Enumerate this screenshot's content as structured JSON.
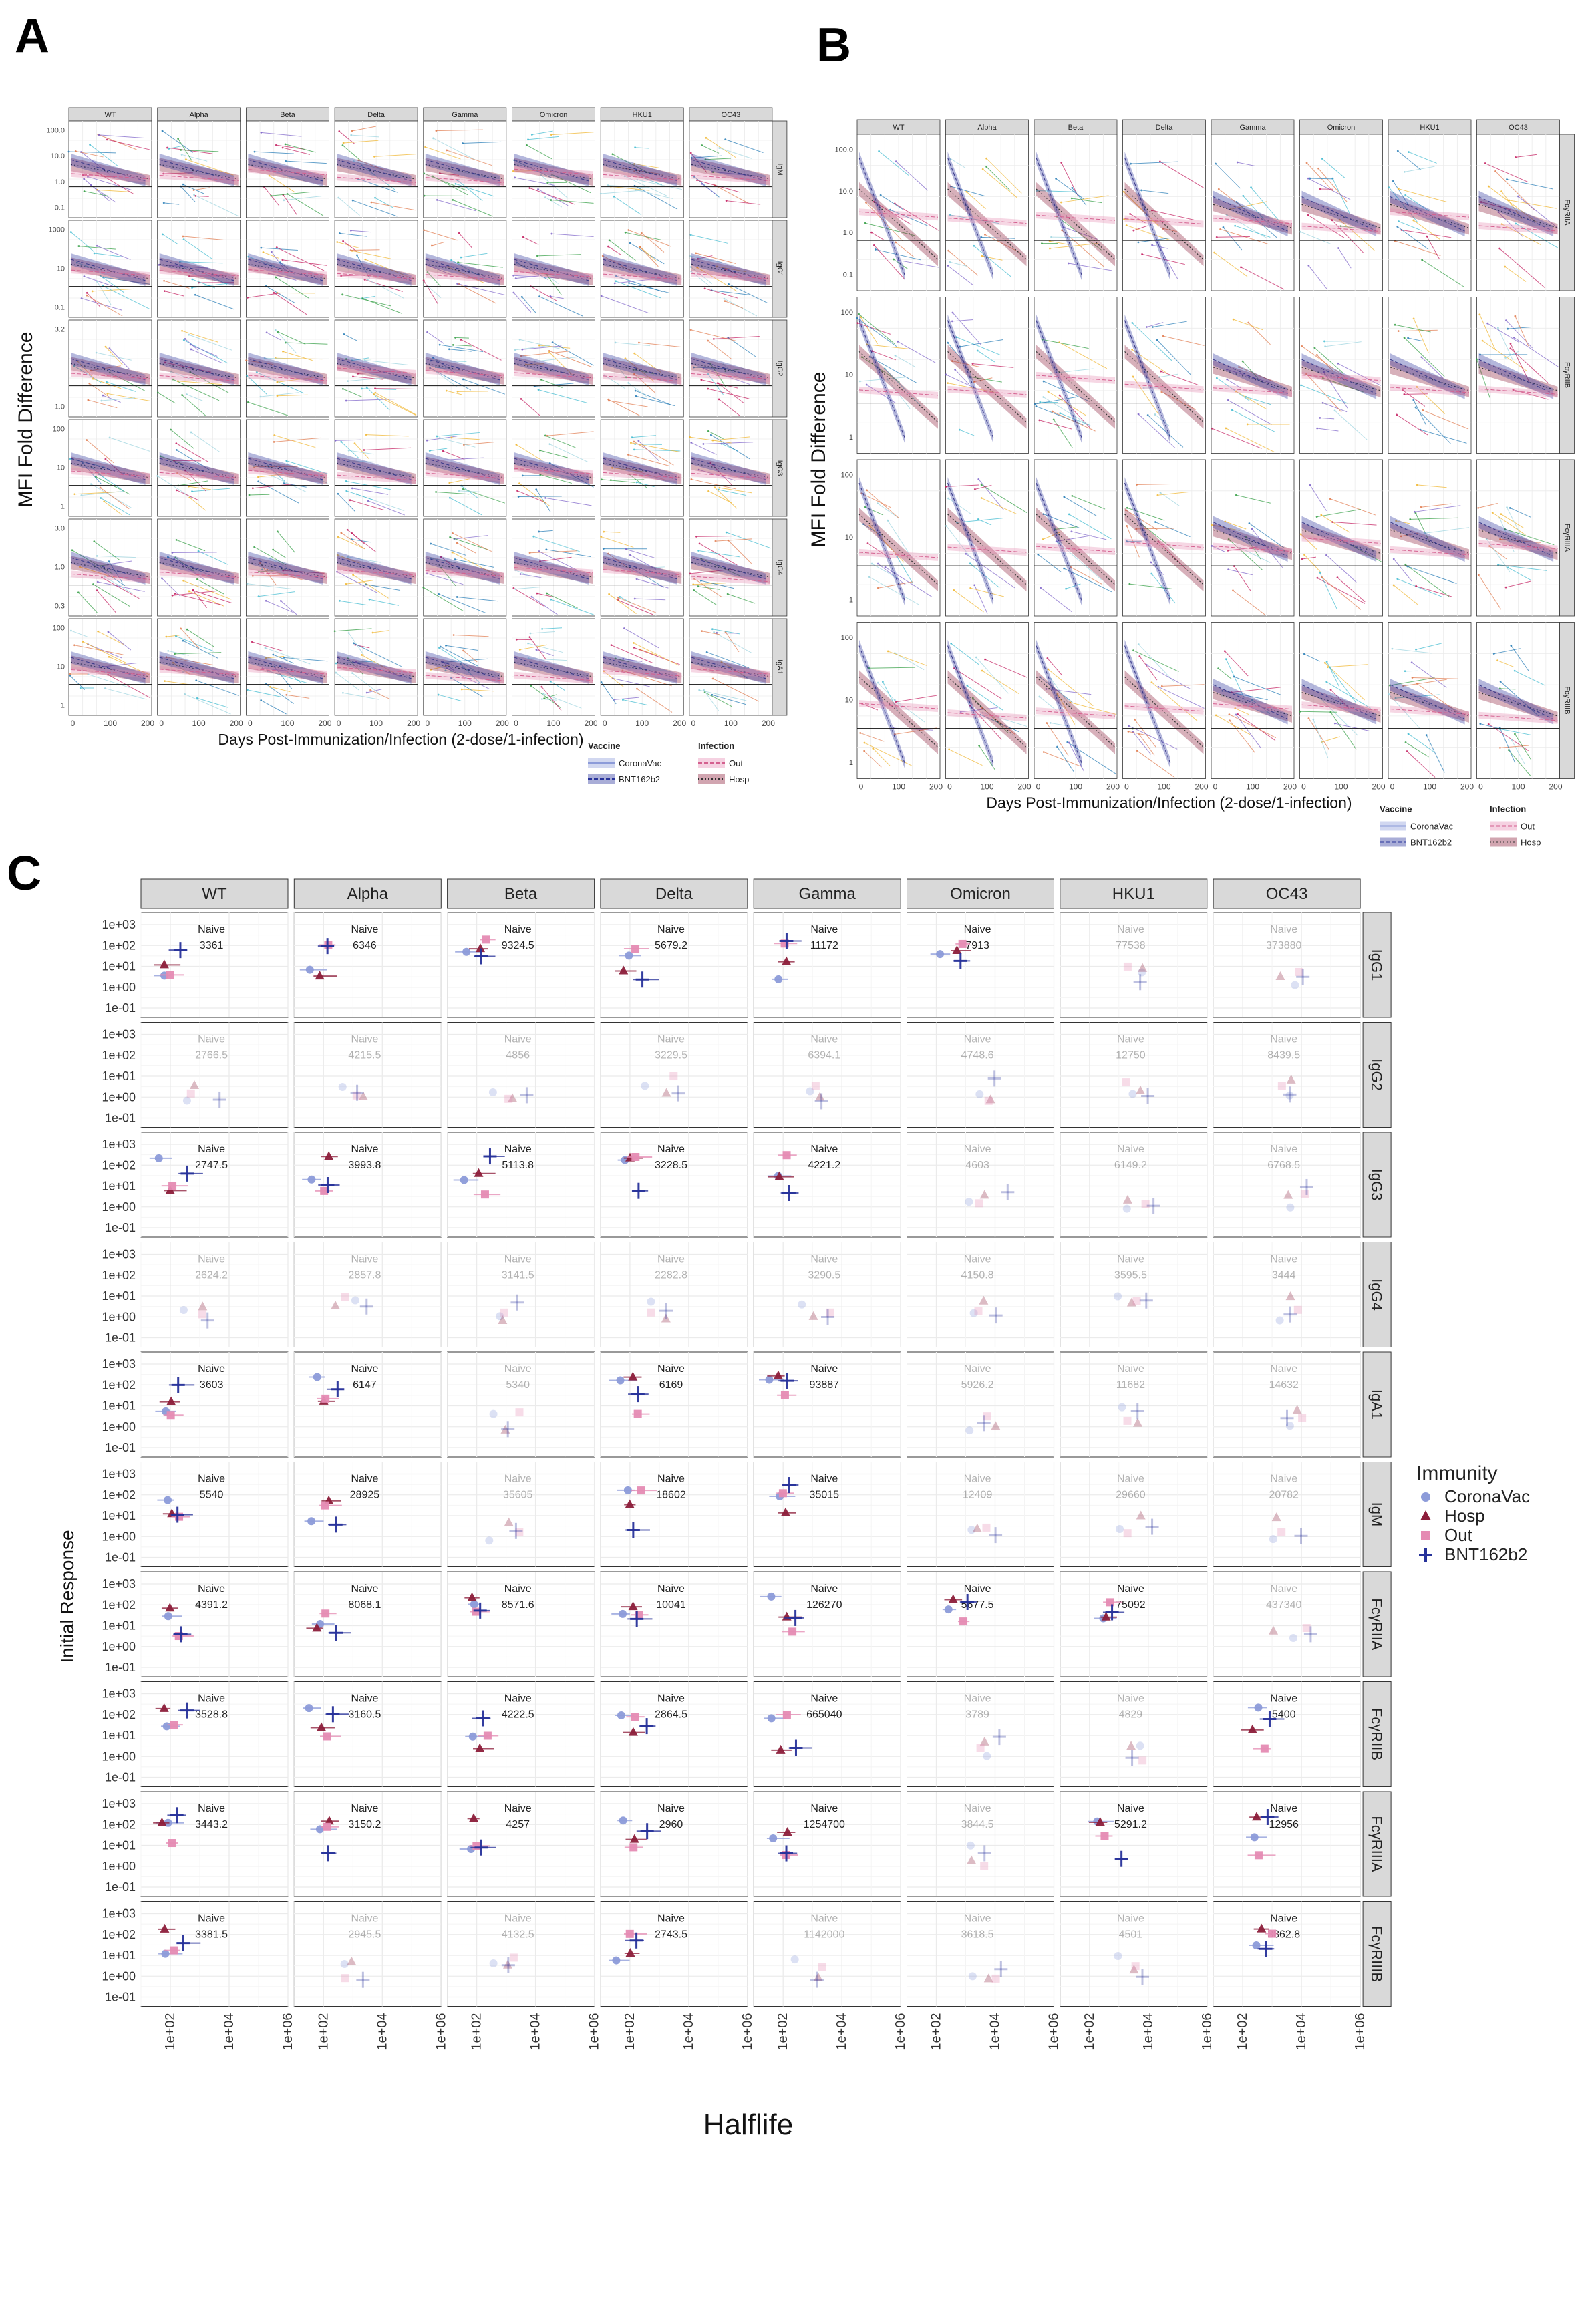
{
  "panel_labels": {
    "a": "A",
    "b": "B",
    "c": "C"
  },
  "variants": [
    "WT",
    "Alpha",
    "Beta",
    "Delta",
    "Gamma",
    "Omicron",
    "HKU1",
    "OC43"
  ],
  "panel_a": {
    "rows": [
      "IgM",
      "IgG1",
      "IgG2",
      "IgG3",
      "IgG4",
      "IgA1"
    ],
    "ytick_labels": [
      [
        "100.0",
        "10.0",
        "1.0",
        "0.1"
      ],
      [
        "1000",
        "10",
        "0.1"
      ],
      [
        "3.2",
        "1.0"
      ],
      [
        "100",
        "10",
        "1"
      ],
      [
        "3.0",
        "1.0",
        "0.3"
      ],
      [
        "100",
        "10",
        "1"
      ]
    ],
    "ylabel": "MFI Fold Difference",
    "xlabel": "Days Post-Immunization/Infection (2-dose/1-infection)",
    "xtick_labels": [
      "0",
      "100",
      "200"
    ]
  },
  "panel_b": {
    "rows": [
      "FcγRIIA",
      "FcγRIIB",
      "FcγRIIIA",
      "FcγRIIIB"
    ],
    "ytick_labels": [
      [
        "100.0",
        "10.0",
        "1.0",
        "0.1"
      ],
      [
        "100",
        "10",
        "1"
      ],
      [
        "100",
        "10",
        "1"
      ],
      [
        "100",
        "10",
        "1"
      ]
    ],
    "ylabel": "MFI Fold Difference",
    "xlabel": "Days Post-Immunization/Infection (2-dose/1-infection)",
    "xtick_labels": [
      "0",
      "100",
      "200"
    ]
  },
  "legend_ab": {
    "vaccine_title": "Vaccine",
    "vaccine_items": [
      "CoronaVac",
      "BNT162b2"
    ],
    "infection_title": "Infection",
    "infection_items": [
      "Out",
      "Hosp"
    ]
  },
  "panel_c": {
    "rows": [
      "IgG1",
      "IgG2",
      "IgG3",
      "IgG4",
      "IgA1",
      "IgM",
      "FcγRIIA",
      "FcγRIIB",
      "FcγRIIIA",
      "FcγRIIIB"
    ],
    "ytick_labels": [
      "1e+03",
      "1e+02",
      "1e+01",
      "1e+00",
      "1e-01"
    ],
    "xtick_labels": [
      "1e+02",
      "1e+04",
      "1e+06"
    ],
    "xlabel": "Halflife",
    "ylabel": "Initial Response",
    "naive_label": "Naive",
    "naive_values": [
      [
        "3361",
        "6346",
        "9324.5",
        "5679.2",
        "11172",
        "7913",
        "77538",
        "373880"
      ],
      [
        "2766.5",
        "4215.5",
        "4856",
        "3229.5",
        "6394.1",
        "4748.6",
        "12750",
        "8439.5"
      ],
      [
        "2747.5",
        "3993.8",
        "5113.8",
        "3228.5",
        "4221.2",
        "4603",
        "6149.2",
        "6768.5"
      ],
      [
        "2624.2",
        "2857.8",
        "3141.5",
        "2282.8",
        "3290.5",
        "4150.8",
        "3595.5",
        "3444"
      ],
      [
        "3603",
        "6147",
        "5340",
        "6169",
        "93887",
        "5926.2",
        "11682",
        "14632"
      ],
      [
        "5540",
        "28925",
        "35605",
        "18602",
        "35015",
        "12409",
        "29660",
        "20782"
      ],
      [
        "4391.2",
        "8068.1",
        "8571.6",
        "10041",
        "126270",
        "5677.5",
        "75092",
        "437340"
      ],
      [
        "3528.8",
        "3160.5",
        "4222.5",
        "2864.5",
        "665040",
        "3789",
        "4829",
        "5400"
      ],
      [
        "3443.2",
        "3150.2",
        "4257",
        "2960",
        "1254700",
        "3844.5",
        "5291.2",
        "12956"
      ],
      [
        "3381.5",
        "2945.5",
        "4132.5",
        "2743.5",
        "1142000",
        "3618.5",
        "4501",
        "3862.8"
      ]
    ],
    "naive_faded": [
      [
        false,
        false,
        false,
        false,
        false,
        false,
        true,
        true
      ],
      [
        true,
        true,
        true,
        true,
        true,
        true,
        true,
        true
      ],
      [
        false,
        false,
        false,
        false,
        false,
        true,
        true,
        true
      ],
      [
        true,
        true,
        true,
        true,
        true,
        true,
        true,
        true
      ],
      [
        false,
        false,
        true,
        false,
        false,
        true,
        true,
        true
      ],
      [
        false,
        false,
        true,
        false,
        false,
        true,
        true,
        true
      ],
      [
        false,
        false,
        false,
        false,
        false,
        false,
        false,
        true
      ],
      [
        false,
        false,
        false,
        false,
        false,
        true,
        true,
        false
      ],
      [
        false,
        false,
        false,
        false,
        false,
        true,
        false,
        false
      ],
      [
        false,
        true,
        true,
        false,
        true,
        true,
        true,
        false
      ]
    ]
  },
  "legend_c": {
    "title": "Immunity",
    "items": [
      "CoronaVac",
      "Hosp",
      "Out",
      "BNT162b2"
    ]
  },
  "colors": {
    "coronavac": "#8c9bd9",
    "bnt162b2": "#27329a",
    "out": "#e58bb3",
    "hosp": "#8c1d3a",
    "strip_fill": "#d9d9d9",
    "grid": "#ebebeb"
  }
}
